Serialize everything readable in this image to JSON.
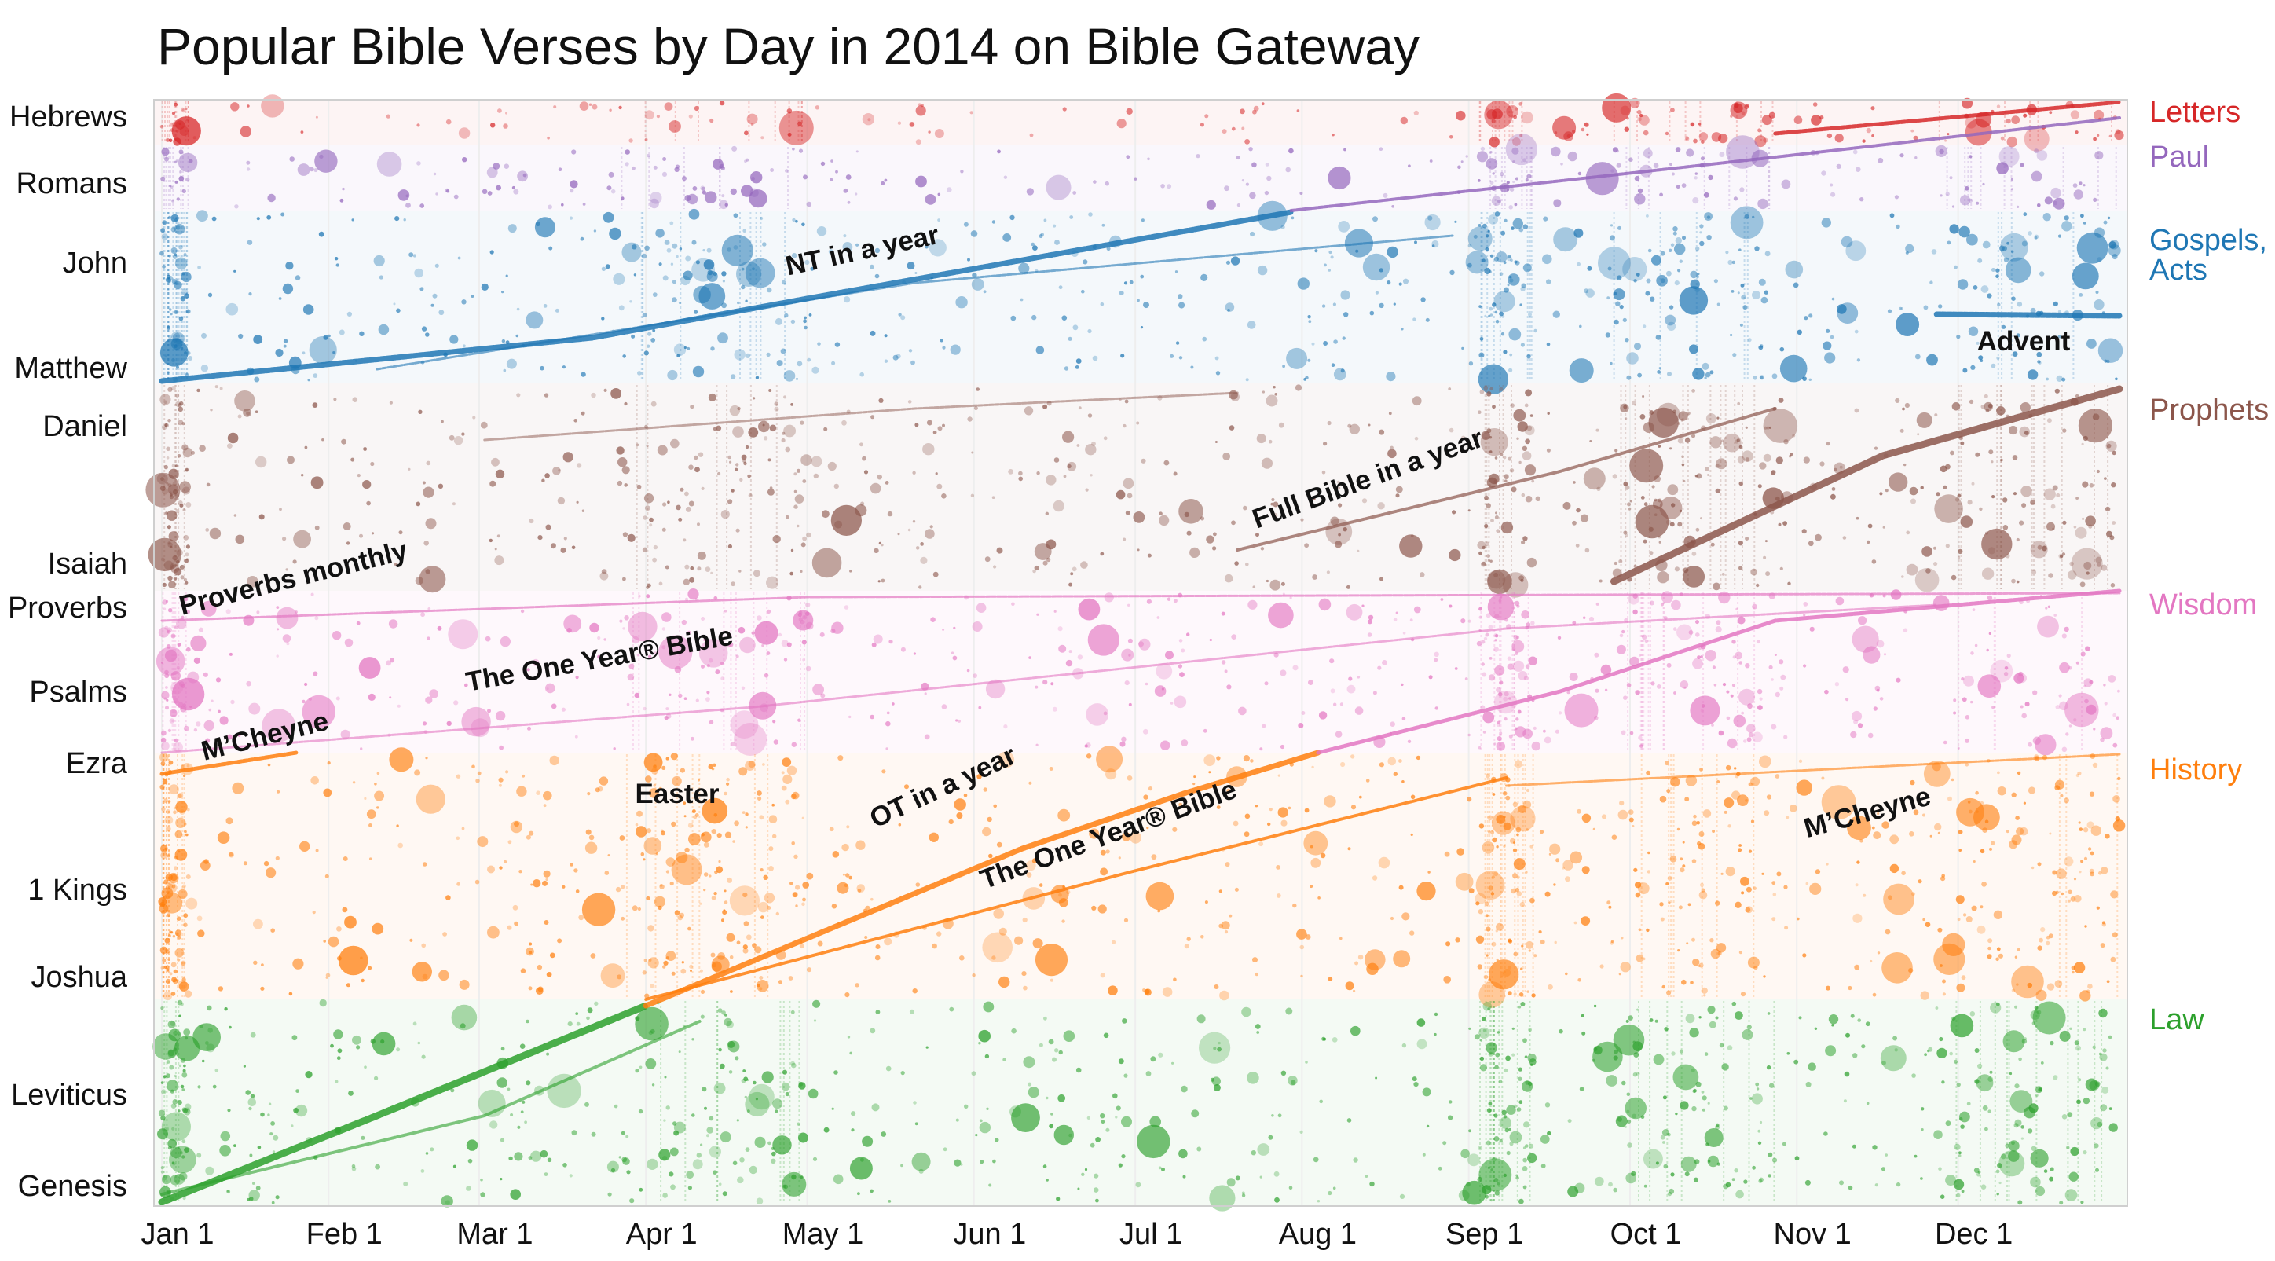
{
  "chart_data": {
    "type": "scatter",
    "title": "Popular Bible Verses by Day in 2014 on Bible Gateway",
    "xlabel": "",
    "ylabel": "",
    "x_axis": {
      "range": [
        "2014-01-01",
        "2014-12-31"
      ],
      "ticks": [
        "Jan 1",
        "Feb 1",
        "Mar 1",
        "Apr 1",
        "May 1",
        "Jun 1",
        "Jul 1",
        "Aug 1",
        "Sep 1",
        "Oct 1",
        "Nov 1",
        "Dec 1"
      ]
    },
    "y_axis": {
      "ticks": [
        "Hebrews",
        "Romans",
        "John",
        "Matthew",
        "Daniel",
        "Isaiah",
        "Proverbs",
        "Psalms",
        "Ezra",
        "1 Kings",
        "Joshua",
        "Leviticus",
        "Genesis"
      ]
    },
    "grid": true,
    "legend": "right",
    "series": [
      {
        "name": "Letters",
        "color": "#d62728"
      },
      {
        "name": "Paul",
        "color": "#9467bd"
      },
      {
        "name": "Gospels, Acts",
        "color": "#1f77b4"
      },
      {
        "name": "Prophets",
        "color": "#8c564b"
      },
      {
        "name": "Wisdom",
        "color": "#e377c2"
      },
      {
        "name": "History",
        "color": "#ff7f0e"
      },
      {
        "name": "Law",
        "color": "#2ca02c"
      }
    ],
    "annotations": [
      "NT in a year",
      "Advent",
      "Full Bible in a year",
      "Proverbs monthly",
      "The One Year® Bible",
      "M’Cheyne",
      "Easter",
      "OT in a year",
      "The One Year® Bible",
      "M’Cheyne"
    ]
  }
}
